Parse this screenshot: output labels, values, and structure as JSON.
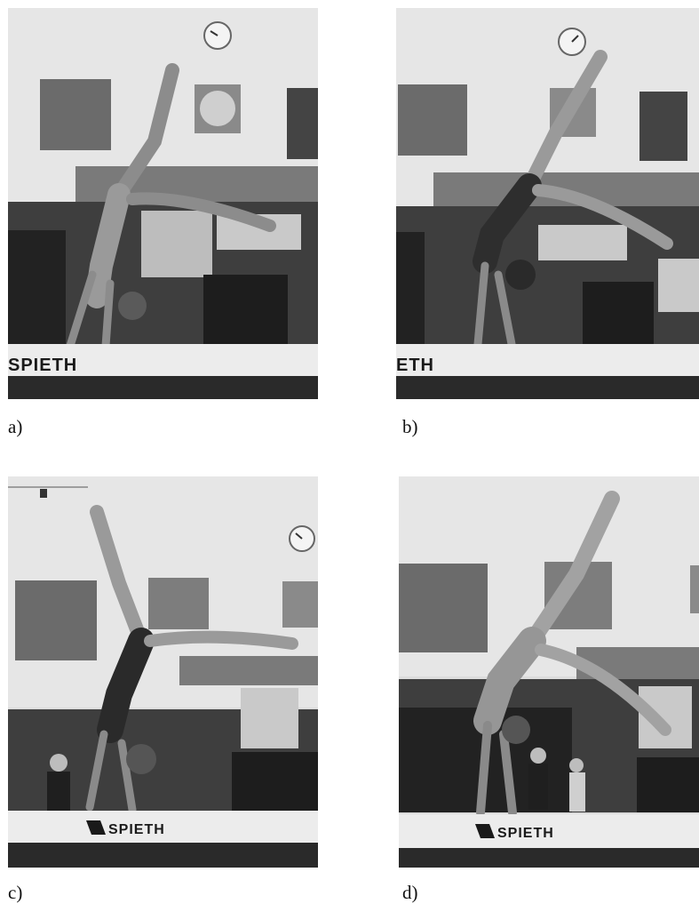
{
  "figure": {
    "panels": [
      {
        "id": "a",
        "caption": "a)",
        "beam_label": "SPIETH",
        "description": "gymnast in handstand walkover on balance beam"
      },
      {
        "id": "b",
        "caption": "b)",
        "beam_label": "ETH",
        "description": "gymnast in handstand walkover on balance beam"
      },
      {
        "id": "c",
        "caption": "c)",
        "beam_label": "SPIETH",
        "description": "gymnast in handstand walkover on balance beam"
      },
      {
        "id": "d",
        "caption": "d)",
        "beam_label": "SPIETH",
        "description": "gymnast in handstand walkover on balance beam"
      }
    ]
  }
}
